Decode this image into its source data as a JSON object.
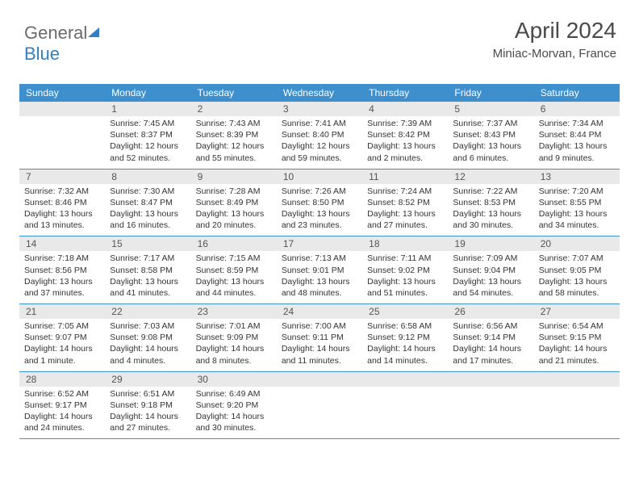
{
  "brand": {
    "part1": "General",
    "part2": "Blue"
  },
  "title": "April 2024",
  "location": "Miniac-Morvan, France",
  "dow": [
    "Sunday",
    "Monday",
    "Tuesday",
    "Wednesday",
    "Thursday",
    "Friday",
    "Saturday"
  ],
  "style": {
    "header_bg": "#3d8fce",
    "header_text": "#ffffff",
    "daynum_bg": "#e9e9e9",
    "page_bg": "#ffffff",
    "title_color": "#4a4a4a",
    "week_border": "#3d8fce",
    "cell_font_size": 10.5,
    "title_font_size": 28
  },
  "weeks": [
    {
      "nums": [
        "",
        "1",
        "2",
        "3",
        "4",
        "5",
        "6"
      ],
      "cells": [
        {
          "sunrise": "",
          "sunset": "",
          "daylight": ""
        },
        {
          "sunrise": "Sunrise: 7:45 AM",
          "sunset": "Sunset: 8:37 PM",
          "daylight": "Daylight: 12 hours and 52 minutes."
        },
        {
          "sunrise": "Sunrise: 7:43 AM",
          "sunset": "Sunset: 8:39 PM",
          "daylight": "Daylight: 12 hours and 55 minutes."
        },
        {
          "sunrise": "Sunrise: 7:41 AM",
          "sunset": "Sunset: 8:40 PM",
          "daylight": "Daylight: 12 hours and 59 minutes."
        },
        {
          "sunrise": "Sunrise: 7:39 AM",
          "sunset": "Sunset: 8:42 PM",
          "daylight": "Daylight: 13 hours and 2 minutes."
        },
        {
          "sunrise": "Sunrise: 7:37 AM",
          "sunset": "Sunset: 8:43 PM",
          "daylight": "Daylight: 13 hours and 6 minutes."
        },
        {
          "sunrise": "Sunrise: 7:34 AM",
          "sunset": "Sunset: 8:44 PM",
          "daylight": "Daylight: 13 hours and 9 minutes."
        }
      ]
    },
    {
      "nums": [
        "7",
        "8",
        "9",
        "10",
        "11",
        "12",
        "13"
      ],
      "cells": [
        {
          "sunrise": "Sunrise: 7:32 AM",
          "sunset": "Sunset: 8:46 PM",
          "daylight": "Daylight: 13 hours and 13 minutes."
        },
        {
          "sunrise": "Sunrise: 7:30 AM",
          "sunset": "Sunset: 8:47 PM",
          "daylight": "Daylight: 13 hours and 16 minutes."
        },
        {
          "sunrise": "Sunrise: 7:28 AM",
          "sunset": "Sunset: 8:49 PM",
          "daylight": "Daylight: 13 hours and 20 minutes."
        },
        {
          "sunrise": "Sunrise: 7:26 AM",
          "sunset": "Sunset: 8:50 PM",
          "daylight": "Daylight: 13 hours and 23 minutes."
        },
        {
          "sunrise": "Sunrise: 7:24 AM",
          "sunset": "Sunset: 8:52 PM",
          "daylight": "Daylight: 13 hours and 27 minutes."
        },
        {
          "sunrise": "Sunrise: 7:22 AM",
          "sunset": "Sunset: 8:53 PM",
          "daylight": "Daylight: 13 hours and 30 minutes."
        },
        {
          "sunrise": "Sunrise: 7:20 AM",
          "sunset": "Sunset: 8:55 PM",
          "daylight": "Daylight: 13 hours and 34 minutes."
        }
      ]
    },
    {
      "nums": [
        "14",
        "15",
        "16",
        "17",
        "18",
        "19",
        "20"
      ],
      "cells": [
        {
          "sunrise": "Sunrise: 7:18 AM",
          "sunset": "Sunset: 8:56 PM",
          "daylight": "Daylight: 13 hours and 37 minutes."
        },
        {
          "sunrise": "Sunrise: 7:17 AM",
          "sunset": "Sunset: 8:58 PM",
          "daylight": "Daylight: 13 hours and 41 minutes."
        },
        {
          "sunrise": "Sunrise: 7:15 AM",
          "sunset": "Sunset: 8:59 PM",
          "daylight": "Daylight: 13 hours and 44 minutes."
        },
        {
          "sunrise": "Sunrise: 7:13 AM",
          "sunset": "Sunset: 9:01 PM",
          "daylight": "Daylight: 13 hours and 48 minutes."
        },
        {
          "sunrise": "Sunrise: 7:11 AM",
          "sunset": "Sunset: 9:02 PM",
          "daylight": "Daylight: 13 hours and 51 minutes."
        },
        {
          "sunrise": "Sunrise: 7:09 AM",
          "sunset": "Sunset: 9:04 PM",
          "daylight": "Daylight: 13 hours and 54 minutes."
        },
        {
          "sunrise": "Sunrise: 7:07 AM",
          "sunset": "Sunset: 9:05 PM",
          "daylight": "Daylight: 13 hours and 58 minutes."
        }
      ]
    },
    {
      "nums": [
        "21",
        "22",
        "23",
        "24",
        "25",
        "26",
        "27"
      ],
      "cells": [
        {
          "sunrise": "Sunrise: 7:05 AM",
          "sunset": "Sunset: 9:07 PM",
          "daylight": "Daylight: 14 hours and 1 minute."
        },
        {
          "sunrise": "Sunrise: 7:03 AM",
          "sunset": "Sunset: 9:08 PM",
          "daylight": "Daylight: 14 hours and 4 minutes."
        },
        {
          "sunrise": "Sunrise: 7:01 AM",
          "sunset": "Sunset: 9:09 PM",
          "daylight": "Daylight: 14 hours and 8 minutes."
        },
        {
          "sunrise": "Sunrise: 7:00 AM",
          "sunset": "Sunset: 9:11 PM",
          "daylight": "Daylight: 14 hours and 11 minutes."
        },
        {
          "sunrise": "Sunrise: 6:58 AM",
          "sunset": "Sunset: 9:12 PM",
          "daylight": "Daylight: 14 hours and 14 minutes."
        },
        {
          "sunrise": "Sunrise: 6:56 AM",
          "sunset": "Sunset: 9:14 PM",
          "daylight": "Daylight: 14 hours and 17 minutes."
        },
        {
          "sunrise": "Sunrise: 6:54 AM",
          "sunset": "Sunset: 9:15 PM",
          "daylight": "Daylight: 14 hours and 21 minutes."
        }
      ]
    },
    {
      "nums": [
        "28",
        "29",
        "30",
        "",
        "",
        "",
        ""
      ],
      "cells": [
        {
          "sunrise": "Sunrise: 6:52 AM",
          "sunset": "Sunset: 9:17 PM",
          "daylight": "Daylight: 14 hours and 24 minutes."
        },
        {
          "sunrise": "Sunrise: 6:51 AM",
          "sunset": "Sunset: 9:18 PM",
          "daylight": "Daylight: 14 hours and 27 minutes."
        },
        {
          "sunrise": "Sunrise: 6:49 AM",
          "sunset": "Sunset: 9:20 PM",
          "daylight": "Daylight: 14 hours and 30 minutes."
        },
        {
          "sunrise": "",
          "sunset": "",
          "daylight": ""
        },
        {
          "sunrise": "",
          "sunset": "",
          "daylight": ""
        },
        {
          "sunrise": "",
          "sunset": "",
          "daylight": ""
        },
        {
          "sunrise": "",
          "sunset": "",
          "daylight": ""
        }
      ]
    }
  ]
}
